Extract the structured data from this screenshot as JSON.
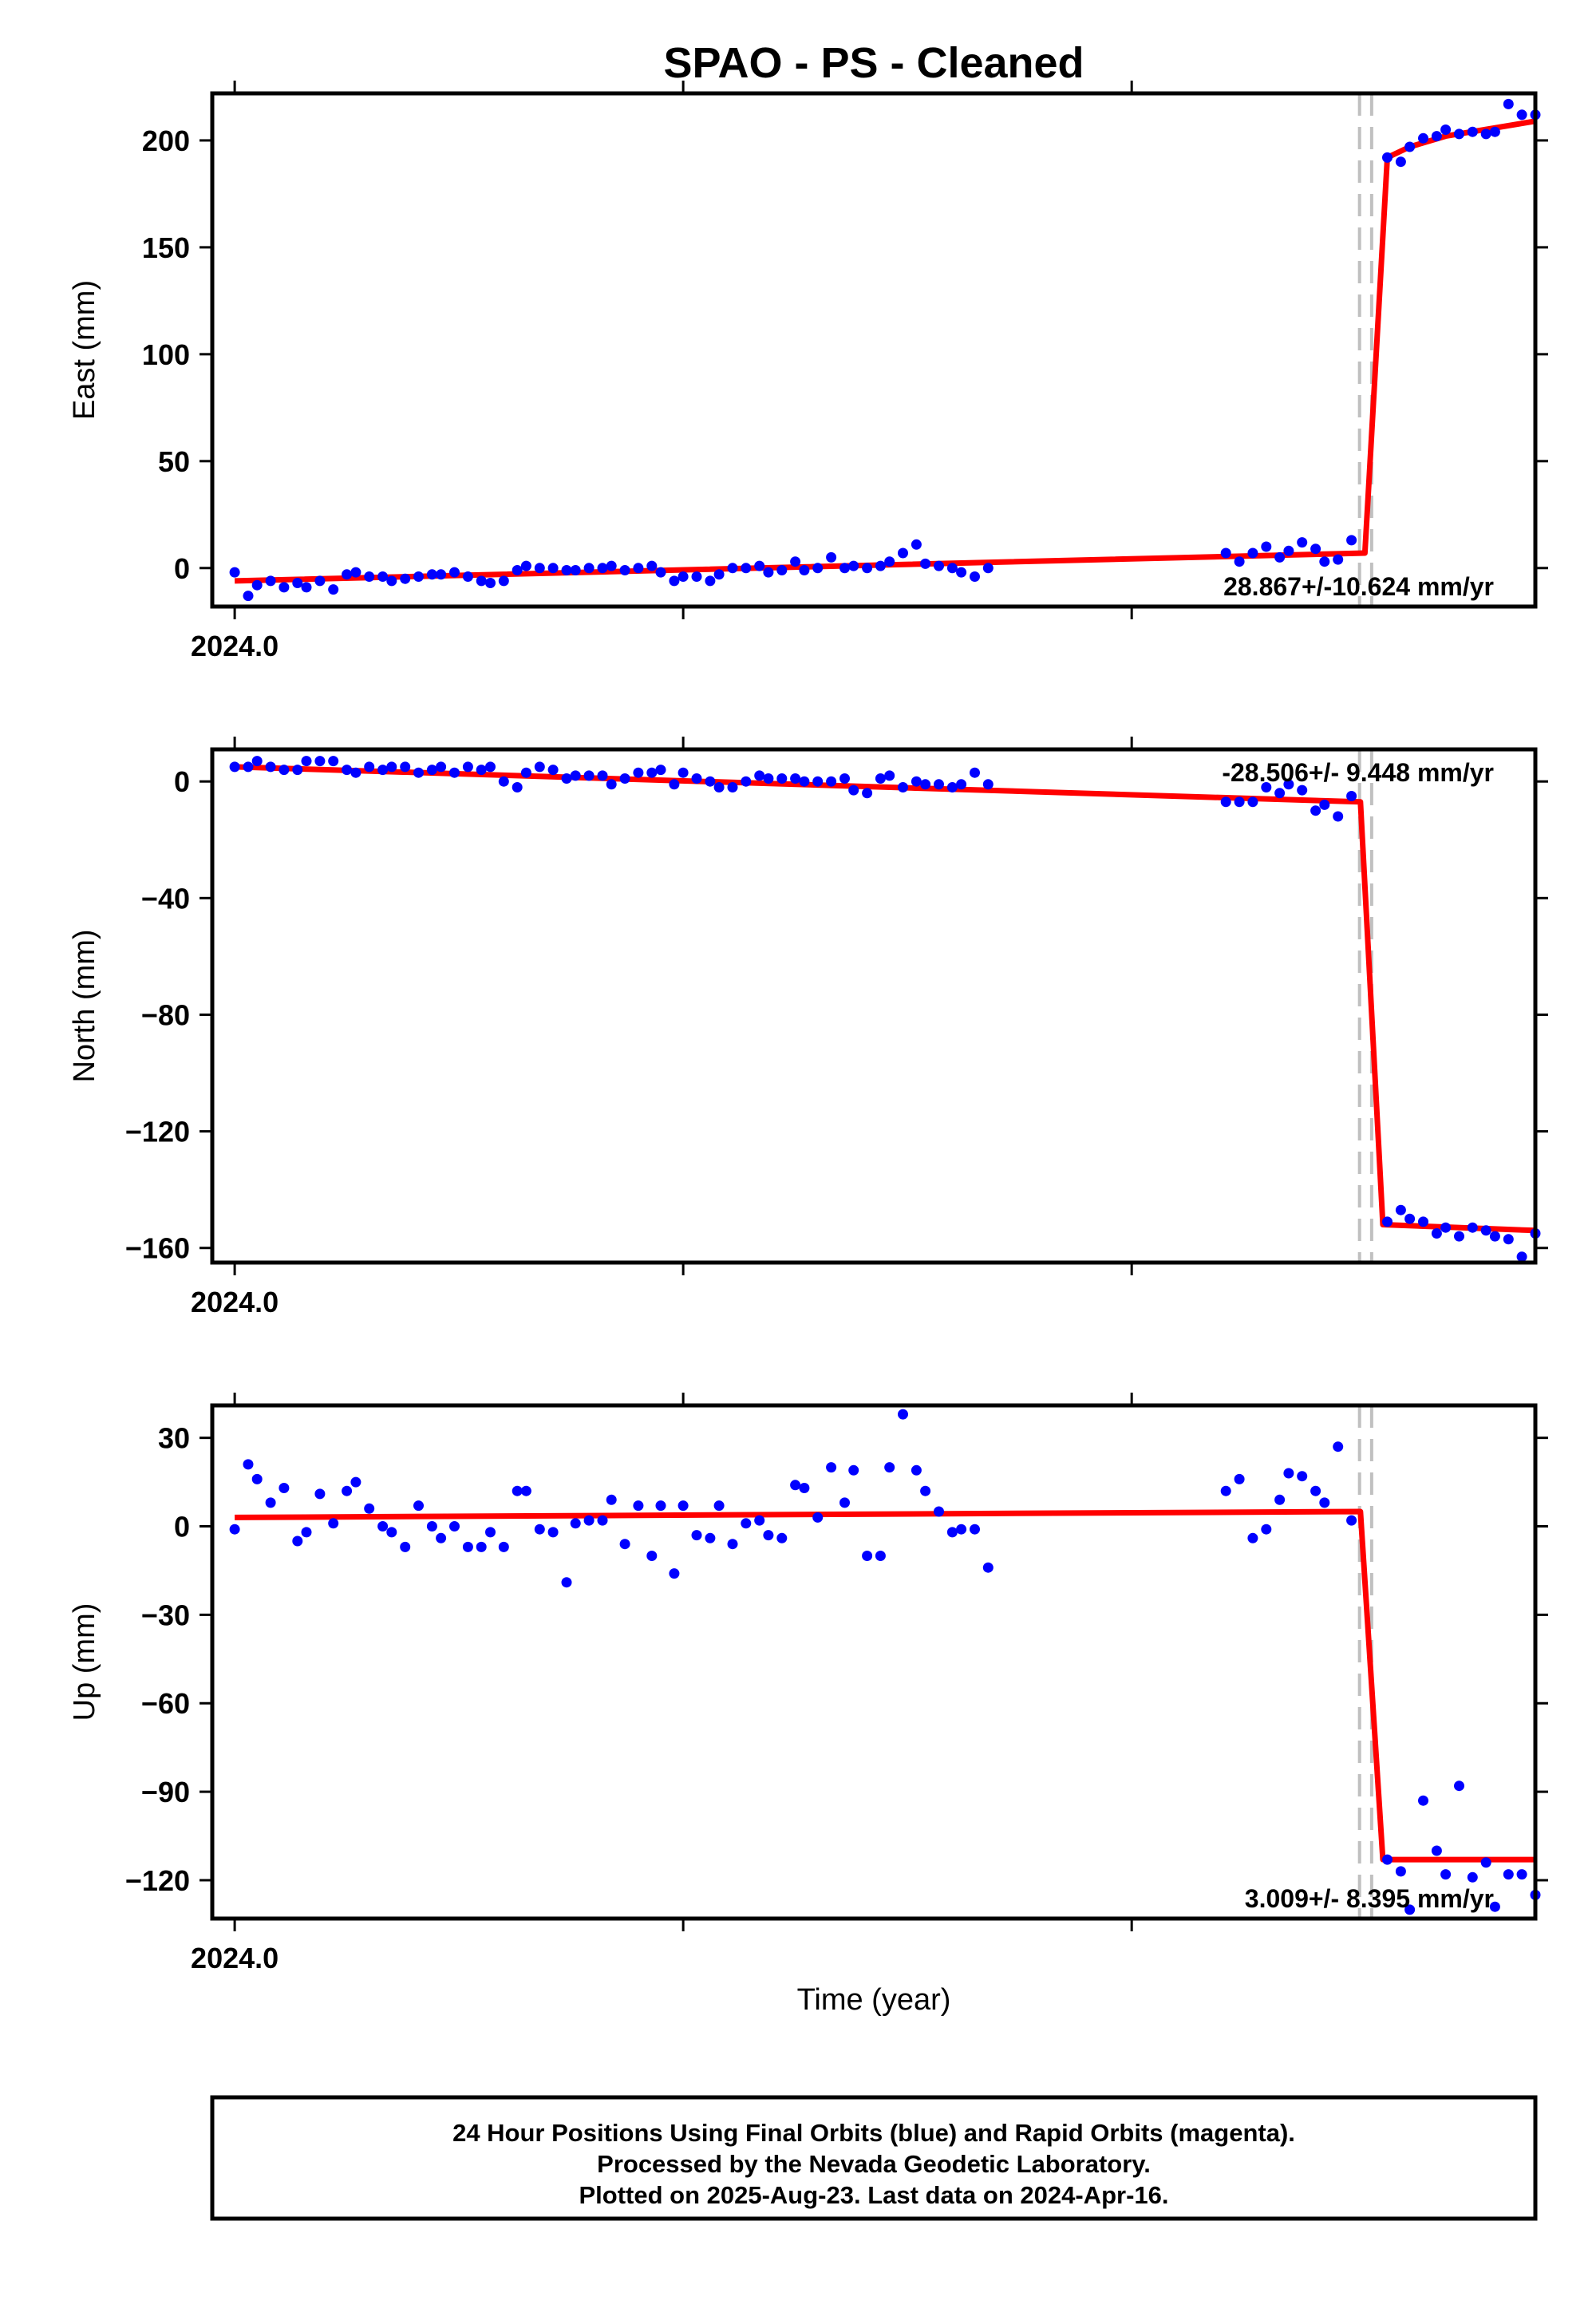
{
  "title": "SPAO  - PS - Cleaned",
  "xlabel": "Time (year)",
  "footer": [
    "24 Hour Positions Using Final Orbits (blue) and Rapid Orbits (magenta).",
    "Processed by the Nevada Geodetic Laboratory.",
    "Plotted on 2025-Aug-23. Last data on 2024-Apr-16."
  ],
  "colors": {
    "points": "#0000ff",
    "model": "#ff0000",
    "step": "#c0c0c0",
    "axes": "#000000"
  },
  "chart_data": [
    {
      "type": "scatter",
      "ylabel": "East (mm)",
      "xlim": [
        2023.995,
        2024.29
      ],
      "ylim": [
        -18,
        222
      ],
      "x_ticks": [
        2024.0,
        2024.1,
        2024.2
      ],
      "x_tick_labels": [
        "2024.0",
        "",
        ""
      ],
      "y_ticks": [
        0,
        50,
        100,
        150,
        200
      ],
      "y_tick_labels": [
        "0",
        "50",
        "100",
        "150",
        "200"
      ],
      "velocity": "28.867+/-10.624 mm/yr",
      "velocity_position": "bottom-right",
      "steps": [
        2024.2508,
        2024.2535
      ],
      "model": [
        [
          2024.0,
          -6
        ],
        [
          2024.252,
          7
        ],
        [
          2024.257,
          192
        ],
        [
          2024.262,
          197
        ],
        [
          2024.27,
          202
        ],
        [
          2024.29,
          209
        ]
      ],
      "points": [
        [
          2024.0,
          -2
        ],
        [
          2024.003,
          -13
        ],
        [
          2024.005,
          -8
        ],
        [
          2024.008,
          -6
        ],
        [
          2024.011,
          -9
        ],
        [
          2024.014,
          -7
        ],
        [
          2024.016,
          -9
        ],
        [
          2024.019,
          -6
        ],
        [
          2024.022,
          -10
        ],
        [
          2024.025,
          -3
        ],
        [
          2024.027,
          -2
        ],
        [
          2024.03,
          -4
        ],
        [
          2024.033,
          -4
        ],
        [
          2024.035,
          -6
        ],
        [
          2024.038,
          -5
        ],
        [
          2024.041,
          -4
        ],
        [
          2024.044,
          -3
        ],
        [
          2024.046,
          -3
        ],
        [
          2024.049,
          -2
        ],
        [
          2024.052,
          -4
        ],
        [
          2024.055,
          -6
        ],
        [
          2024.057,
          -7
        ],
        [
          2024.06,
          -6
        ],
        [
          2024.063,
          -1
        ],
        [
          2024.065,
          1
        ],
        [
          2024.068,
          0
        ],
        [
          2024.071,
          0
        ],
        [
          2024.074,
          -1
        ],
        [
          2024.076,
          -1
        ],
        [
          2024.079,
          0
        ],
        [
          2024.082,
          0
        ],
        [
          2024.084,
          1
        ],
        [
          2024.087,
          -1
        ],
        [
          2024.09,
          0
        ],
        [
          2024.093,
          1
        ],
        [
          2024.095,
          -2
        ],
        [
          2024.098,
          -6
        ],
        [
          2024.1,
          -4
        ],
        [
          2024.103,
          -4
        ],
        [
          2024.106,
          -6
        ],
        [
          2024.108,
          -3
        ],
        [
          2024.111,
          0
        ],
        [
          2024.114,
          0
        ],
        [
          2024.117,
          1
        ],
        [
          2024.119,
          -2
        ],
        [
          2024.122,
          -1
        ],
        [
          2024.125,
          3
        ],
        [
          2024.127,
          -1
        ],
        [
          2024.13,
          0
        ],
        [
          2024.133,
          5
        ],
        [
          2024.136,
          0
        ],
        [
          2024.138,
          1
        ],
        [
          2024.141,
          0
        ],
        [
          2024.144,
          1
        ],
        [
          2024.146,
          3
        ],
        [
          2024.149,
          7
        ],
        [
          2024.152,
          11
        ],
        [
          2024.154,
          2
        ],
        [
          2024.157,
          1
        ],
        [
          2024.16,
          0
        ],
        [
          2024.162,
          -2
        ],
        [
          2024.165,
          -4
        ],
        [
          2024.168,
          0
        ],
        [
          2024.221,
          7
        ],
        [
          2024.224,
          3
        ],
        [
          2024.227,
          7
        ],
        [
          2024.23,
          10
        ],
        [
          2024.233,
          5
        ],
        [
          2024.235,
          8
        ],
        [
          2024.238,
          12
        ],
        [
          2024.241,
          9
        ],
        [
          2024.243,
          3
        ],
        [
          2024.246,
          4
        ],
        [
          2024.249,
          13
        ],
        [
          2024.257,
          192
        ],
        [
          2024.26,
          190
        ],
        [
          2024.262,
          197
        ],
        [
          2024.265,
          201
        ],
        [
          2024.268,
          202
        ],
        [
          2024.27,
          205
        ],
        [
          2024.273,
          203
        ],
        [
          2024.276,
          204
        ],
        [
          2024.279,
          203
        ],
        [
          2024.281,
          204
        ],
        [
          2024.284,
          217
        ],
        [
          2024.287,
          212
        ],
        [
          2024.29,
          212
        ]
      ]
    },
    {
      "type": "scatter",
      "ylabel": "North (mm)",
      "xlim": [
        2023.995,
        2024.29
      ],
      "ylim": [
        -165,
        11
      ],
      "x_ticks": [
        2024.0,
        2024.1,
        2024.2
      ],
      "x_tick_labels": [
        "2024.0",
        "",
        ""
      ],
      "y_ticks": [
        -160,
        -120,
        -80,
        -40,
        0
      ],
      "y_tick_labels": [
        "−160",
        "−120",
        "−80",
        "−40",
        "0"
      ],
      "velocity": "-28.506+/- 9.448 mm/yr",
      "velocity_position": "top-right",
      "steps": [
        2024.2508,
        2024.2535
      ],
      "model": [
        [
          2024.0,
          5
        ],
        [
          2024.251,
          -7
        ],
        [
          2024.256,
          -152
        ],
        [
          2024.29,
          -154
        ]
      ],
      "points": [
        [
          2024.0,
          5
        ],
        [
          2024.003,
          5
        ],
        [
          2024.005,
          7
        ],
        [
          2024.008,
          5
        ],
        [
          2024.011,
          4
        ],
        [
          2024.014,
          4
        ],
        [
          2024.016,
          7
        ],
        [
          2024.019,
          7
        ],
        [
          2024.022,
          7
        ],
        [
          2024.025,
          4
        ],
        [
          2024.027,
          3
        ],
        [
          2024.03,
          5
        ],
        [
          2024.033,
          4
        ],
        [
          2024.035,
          5
        ],
        [
          2024.038,
          5
        ],
        [
          2024.041,
          3
        ],
        [
          2024.044,
          4
        ],
        [
          2024.046,
          5
        ],
        [
          2024.049,
          3
        ],
        [
          2024.052,
          5
        ],
        [
          2024.055,
          4
        ],
        [
          2024.057,
          5
        ],
        [
          2024.06,
          0
        ],
        [
          2024.063,
          -2
        ],
        [
          2024.065,
          3
        ],
        [
          2024.068,
          5
        ],
        [
          2024.071,
          4
        ],
        [
          2024.074,
          1
        ],
        [
          2024.076,
          2
        ],
        [
          2024.079,
          2
        ],
        [
          2024.082,
          2
        ],
        [
          2024.084,
          -1
        ],
        [
          2024.087,
          1
        ],
        [
          2024.09,
          3
        ],
        [
          2024.093,
          3
        ],
        [
          2024.095,
          4
        ],
        [
          2024.098,
          -1
        ],
        [
          2024.1,
          3
        ],
        [
          2024.103,
          1
        ],
        [
          2024.106,
          0
        ],
        [
          2024.108,
          -2
        ],
        [
          2024.111,
          -2
        ],
        [
          2024.114,
          0
        ],
        [
          2024.117,
          2
        ],
        [
          2024.119,
          1
        ],
        [
          2024.122,
          1
        ],
        [
          2024.125,
          1
        ],
        [
          2024.127,
          0
        ],
        [
          2024.13,
          0
        ],
        [
          2024.133,
          0
        ],
        [
          2024.136,
          1
        ],
        [
          2024.138,
          -3
        ],
        [
          2024.141,
          -4
        ],
        [
          2024.144,
          1
        ],
        [
          2024.146,
          2
        ],
        [
          2024.149,
          -2
        ],
        [
          2024.152,
          0
        ],
        [
          2024.154,
          -1
        ],
        [
          2024.157,
          -1
        ],
        [
          2024.16,
          -2
        ],
        [
          2024.162,
          -1
        ],
        [
          2024.165,
          3
        ],
        [
          2024.168,
          -1
        ],
        [
          2024.221,
          -7
        ],
        [
          2024.224,
          -7
        ],
        [
          2024.227,
          -7
        ],
        [
          2024.23,
          -2
        ],
        [
          2024.233,
          -4
        ],
        [
          2024.235,
          -1
        ],
        [
          2024.238,
          -3
        ],
        [
          2024.241,
          -10
        ],
        [
          2024.243,
          -8
        ],
        [
          2024.246,
          -12
        ],
        [
          2024.249,
          -5
        ],
        [
          2024.257,
          -151
        ],
        [
          2024.26,
          -147
        ],
        [
          2024.262,
          -150
        ],
        [
          2024.265,
          -151
        ],
        [
          2024.268,
          -155
        ],
        [
          2024.27,
          -153
        ],
        [
          2024.273,
          -156
        ],
        [
          2024.276,
          -153
        ],
        [
          2024.279,
          -154
        ],
        [
          2024.281,
          -156
        ],
        [
          2024.284,
          -157
        ],
        [
          2024.287,
          -163
        ],
        [
          2024.29,
          -155
        ]
      ]
    },
    {
      "type": "scatter",
      "ylabel": "Up (mm)",
      "xlim": [
        2023.995,
        2024.29
      ],
      "ylim": [
        -133,
        41
      ],
      "x_ticks": [
        2024.0,
        2024.1,
        2024.2
      ],
      "x_tick_labels": [
        "2024.0",
        "",
        ""
      ],
      "y_ticks": [
        -120,
        -90,
        -60,
        -30,
        0,
        30
      ],
      "y_tick_labels": [
        "−120",
        "−90",
        "−60",
        "−30",
        "0",
        "30"
      ],
      "velocity": "3.009+/- 8.395 mm/yr",
      "velocity_position": "bottom-right",
      "steps": [
        2024.2508,
        2024.2535
      ],
      "model": [
        [
          2024.0,
          3
        ],
        [
          2024.251,
          5
        ],
        [
          2024.256,
          -113
        ],
        [
          2024.29,
          -113
        ]
      ],
      "points": [
        [
          2024.0,
          -1
        ],
        [
          2024.003,
          21
        ],
        [
          2024.005,
          16
        ],
        [
          2024.008,
          8
        ],
        [
          2024.011,
          13
        ],
        [
          2024.014,
          -5
        ],
        [
          2024.016,
          -2
        ],
        [
          2024.019,
          11
        ],
        [
          2024.022,
          1
        ],
        [
          2024.025,
          12
        ],
        [
          2024.027,
          15
        ],
        [
          2024.03,
          6
        ],
        [
          2024.033,
          0
        ],
        [
          2024.035,
          -2
        ],
        [
          2024.038,
          -7
        ],
        [
          2024.041,
          7
        ],
        [
          2024.044,
          0
        ],
        [
          2024.046,
          -4
        ],
        [
          2024.049,
          0
        ],
        [
          2024.052,
          -7
        ],
        [
          2024.055,
          -7
        ],
        [
          2024.057,
          -2
        ],
        [
          2024.06,
          -7
        ],
        [
          2024.063,
          12
        ],
        [
          2024.065,
          12
        ],
        [
          2024.068,
          -1
        ],
        [
          2024.071,
          -2
        ],
        [
          2024.074,
          -19
        ],
        [
          2024.076,
          1
        ],
        [
          2024.079,
          2
        ],
        [
          2024.082,
          2
        ],
        [
          2024.084,
          9
        ],
        [
          2024.087,
          -6
        ],
        [
          2024.09,
          7
        ],
        [
          2024.093,
          -10
        ],
        [
          2024.095,
          7
        ],
        [
          2024.098,
          -16
        ],
        [
          2024.1,
          7
        ],
        [
          2024.103,
          -3
        ],
        [
          2024.106,
          -4
        ],
        [
          2024.108,
          7
        ],
        [
          2024.111,
          -6
        ],
        [
          2024.114,
          1
        ],
        [
          2024.117,
          2
        ],
        [
          2024.119,
          -3
        ],
        [
          2024.122,
          -4
        ],
        [
          2024.125,
          14
        ],
        [
          2024.127,
          13
        ],
        [
          2024.13,
          3
        ],
        [
          2024.133,
          20
        ],
        [
          2024.136,
          8
        ],
        [
          2024.138,
          19
        ],
        [
          2024.141,
          -10
        ],
        [
          2024.144,
          -10
        ],
        [
          2024.146,
          20
        ],
        [
          2024.149,
          38
        ],
        [
          2024.152,
          19
        ],
        [
          2024.154,
          12
        ],
        [
          2024.157,
          5
        ],
        [
          2024.16,
          -2
        ],
        [
          2024.162,
          -1
        ],
        [
          2024.165,
          -1
        ],
        [
          2024.168,
          -14
        ],
        [
          2024.221,
          12
        ],
        [
          2024.224,
          16
        ],
        [
          2024.227,
          -4
        ],
        [
          2024.23,
          -1
        ],
        [
          2024.233,
          9
        ],
        [
          2024.235,
          18
        ],
        [
          2024.238,
          17
        ],
        [
          2024.241,
          12
        ],
        [
          2024.243,
          8
        ],
        [
          2024.246,
          27
        ],
        [
          2024.249,
          2
        ],
        [
          2024.257,
          -113
        ],
        [
          2024.26,
          -117
        ],
        [
          2024.262,
          -130
        ],
        [
          2024.265,
          -93
        ],
        [
          2024.268,
          -110
        ],
        [
          2024.27,
          -118
        ],
        [
          2024.273,
          -88
        ],
        [
          2024.276,
          -119
        ],
        [
          2024.279,
          -114
        ],
        [
          2024.281,
          -129
        ],
        [
          2024.284,
          -118
        ],
        [
          2024.287,
          -118
        ],
        [
          2024.29,
          -125
        ]
      ]
    }
  ]
}
